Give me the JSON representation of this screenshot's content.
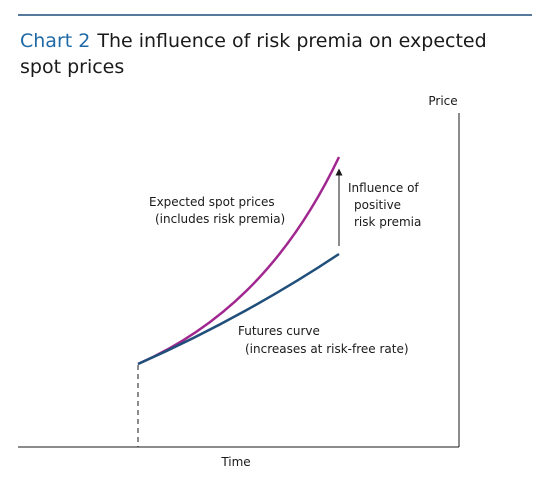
{
  "chart_data": {
    "type": "line",
    "title_number": "Chart 2",
    "title_line1": "The influence of risk premia on expected",
    "title_line2": "spot prices",
    "xlabel": "Time",
    "ylabel": "Price",
    "grid": false,
    "series": [
      {
        "label_lines": [
          "Expected spot prices",
          "(includes risk premia)"
        ],
        "color": "#a0278f"
      },
      {
        "label_lines": [
          "Futures curve",
          "(increases at risk-free rate)"
        ],
        "color": "#1f4f7a"
      }
    ],
    "annotation": {
      "lines": [
        "Influence of",
        "positive",
        "risk premia"
      ]
    }
  },
  "colors": {
    "rule": "#1f4f7a",
    "axis": "#1a1a1a",
    "spot": "#a0278f",
    "futures": "#1f4f7a"
  }
}
